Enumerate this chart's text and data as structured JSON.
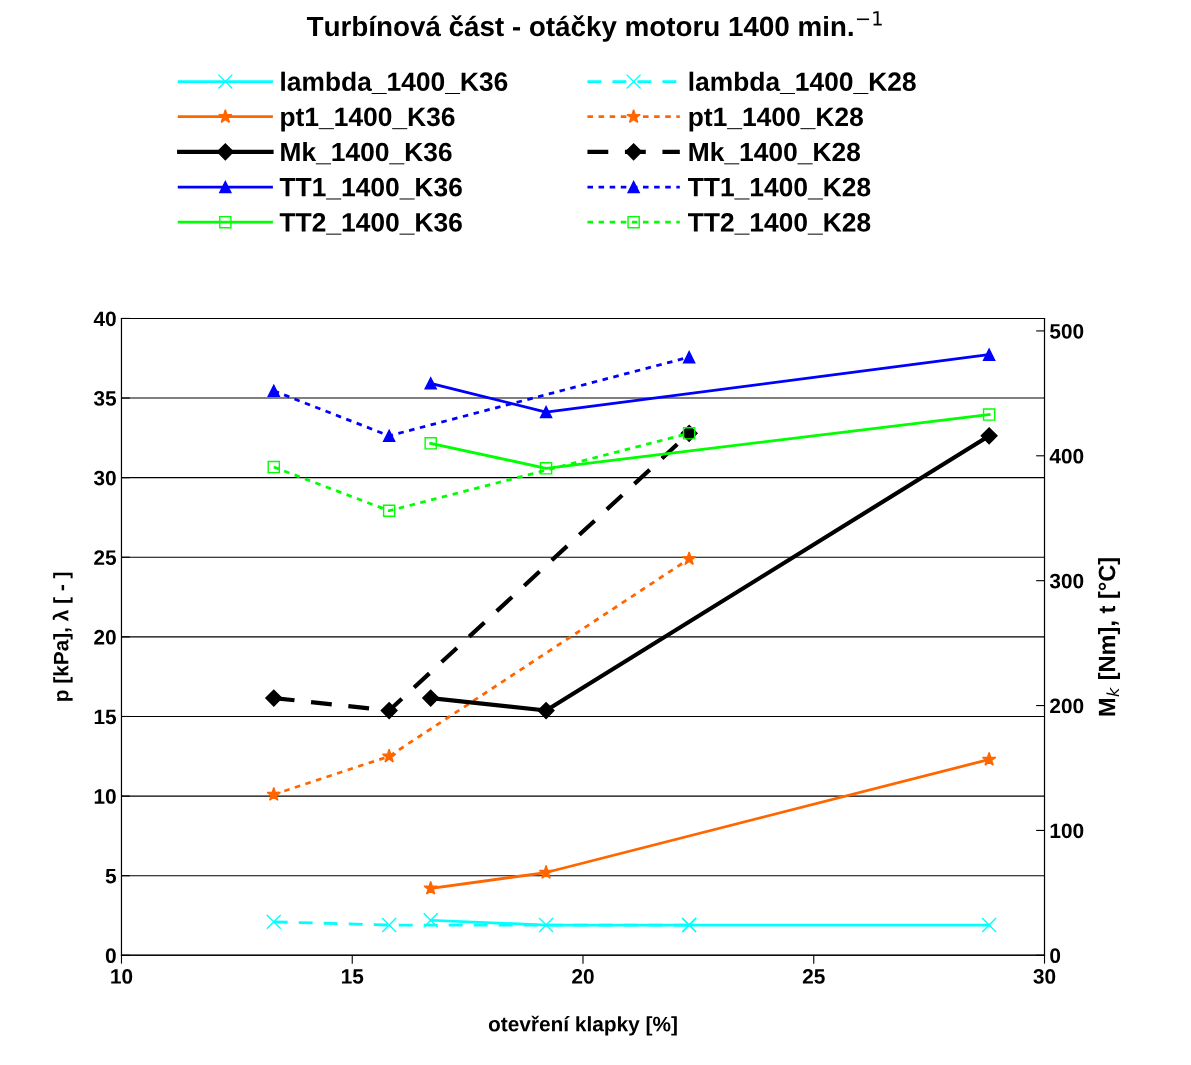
{
  "chart_data": {
    "type": "line",
    "title": "Turbínová část - otáčky motoru 1400 min.$^{−1}$",
    "xlabel": "otevření klapky [%]",
    "ylabel": "p [kPa], λ [ - ]",
    "y2label": "M$_{k}$ [Nm], t [°C]",
    "xlim": [
      10,
      30
    ],
    "xticks": [
      10,
      15,
      20,
      25,
      30
    ],
    "ylim": [
      0,
      40
    ],
    "yticks": [
      0,
      5,
      10,
      15,
      20,
      25,
      30,
      35,
      40
    ],
    "y2lim": [
      0,
      510
    ],
    "y2ticks": [
      0,
      100,
      200,
      300,
      400,
      500
    ],
    "grid": "y",
    "legend": "top",
    "series": [
      {
        "name": "lambda_1400_K36",
        "color": "#00ffff",
        "marker": "cross",
        "line_style": "solid",
        "x": [
          16.7,
          19.2,
          22.3,
          28.8
        ],
        "values": [
          2.2,
          1.9,
          1.9,
          1.9
        ]
      },
      {
        "name": "lambda_1400_K28",
        "color": "#00ffff",
        "marker": "cross",
        "line_style": "dashed",
        "x": [
          13.3,
          15.8,
          22.3
        ],
        "values": [
          2.1,
          1.9,
          1.9
        ]
      },
      {
        "name": "pt1_1400_K36",
        "color": "#ff6600",
        "marker": "star",
        "line_style": "solid",
        "x": [
          16.7,
          19.2,
          28.8
        ],
        "values": [
          4.2,
          5.2,
          12.3
        ]
      },
      {
        "name": "pt1_1400_K28",
        "color": "#ff6600",
        "marker": "star",
        "line_style": "dotted",
        "x": [
          13.3,
          15.8,
          22.3
        ],
        "values": [
          10.1,
          12.5,
          24.9
        ]
      },
      {
        "name": "Mk_1400_K36",
        "color": "#000000",
        "marker": "diamond",
        "line_style": "solid",
        "axis": "y2",
        "x": [
          16.7,
          19.2,
          28.8
        ],
        "values": [
          206,
          196,
          416
        ]
      },
      {
        "name": "Mk_1400_K28",
        "color": "#000000",
        "marker": "diamond",
        "line_style": "dashed",
        "axis": "y2",
        "x": [
          13.3,
          15.8,
          22.3
        ],
        "values": [
          206,
          196,
          418
        ]
      },
      {
        "name": "TT1_1400_K36",
        "color": "#0000ff",
        "marker": "triangle",
        "line_style": "solid",
        "axis": "y2",
        "x": [
          16.7,
          19.2,
          28.8
        ],
        "values": [
          458,
          435,
          481
        ]
      },
      {
        "name": "TT1_1400_K28",
        "color": "#0000ff",
        "marker": "triangle",
        "line_style": "dotted",
        "axis": "y2",
        "x": [
          13.3,
          15.8,
          22.3
        ],
        "values": [
          452,
          416,
          479
        ]
      },
      {
        "name": "TT2_1400_K36",
        "color": "#00ff00",
        "marker": "square",
        "line_style": "solid",
        "axis": "y2",
        "x": [
          16.7,
          19.2,
          28.8
        ],
        "values": [
          410,
          390,
          433
        ]
      },
      {
        "name": "TT2_1400_K28",
        "color": "#00ff00",
        "marker": "square",
        "line_style": "dotted",
        "axis": "y2",
        "x": [
          13.3,
          15.8,
          22.3
        ],
        "values": [
          391,
          356,
          418
        ]
      }
    ]
  }
}
